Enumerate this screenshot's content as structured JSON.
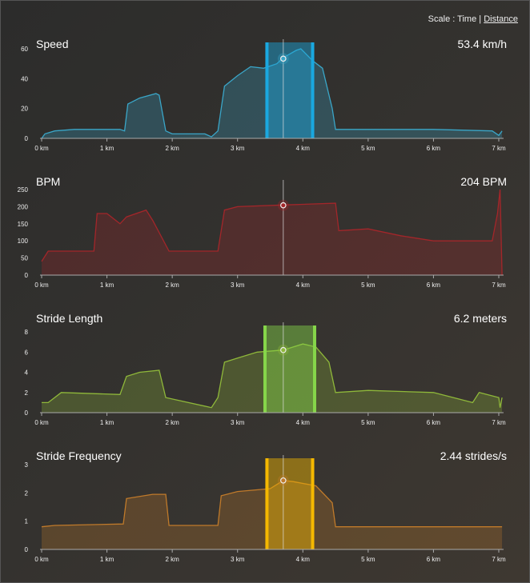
{
  "scale": {
    "label": "Scale :",
    "time": "Time",
    "sep": "|",
    "distance": "Distance"
  },
  "chart_data": [
    {
      "type": "area",
      "title": "Speed",
      "current_value": "53.4 km/h",
      "color": "#3aa6c8",
      "band_color": "#1aa8e0",
      "xlabel": "",
      "ylabel": "",
      "xlim": [
        0,
        7.05
      ],
      "ylim": [
        0,
        60
      ],
      "yticks": [
        "0",
        "20",
        "40",
        "60"
      ],
      "ytick_values": [
        0,
        20,
        40,
        60
      ],
      "xticks": [
        "0 km",
        "1 km",
        "2 km",
        "3 km",
        "4 km",
        "5 km",
        "6 km",
        "7 km"
      ],
      "selection": [
        3.45,
        4.15
      ],
      "cursor": 3.7,
      "cursor_value": 53.4,
      "points": [
        [
          0,
          0
        ],
        [
          0.05,
          3
        ],
        [
          0.2,
          5
        ],
        [
          0.5,
          6
        ],
        [
          1.2,
          6
        ],
        [
          1.27,
          5
        ],
        [
          1.32,
          23
        ],
        [
          1.5,
          27
        ],
        [
          1.75,
          30
        ],
        [
          1.8,
          29
        ],
        [
          1.9,
          5
        ],
        [
          2.0,
          3
        ],
        [
          2.5,
          3
        ],
        [
          2.6,
          1
        ],
        [
          2.7,
          5
        ],
        [
          2.8,
          35
        ],
        [
          3.0,
          42
        ],
        [
          3.2,
          48
        ],
        [
          3.4,
          47
        ],
        [
          3.6,
          50
        ],
        [
          3.7,
          54
        ],
        [
          3.9,
          59
        ],
        [
          3.97,
          60
        ],
        [
          4.15,
          52
        ],
        [
          4.3,
          47
        ],
        [
          4.45,
          20
        ],
        [
          4.5,
          6
        ],
        [
          5,
          6
        ],
        [
          6,
          6
        ],
        [
          6.9,
          5
        ],
        [
          7.0,
          2
        ],
        [
          7.05,
          5
        ]
      ]
    },
    {
      "type": "area",
      "title": "BPM",
      "current_value": "204 BPM",
      "color": "#a3262a",
      "band_color": null,
      "xlim": [
        0,
        7.05
      ],
      "ylim": [
        0,
        250
      ],
      "yticks": [
        "0",
        "50",
        "100",
        "150",
        "200",
        "250"
      ],
      "ytick_values": [
        0,
        50,
        100,
        150,
        200,
        250
      ],
      "xticks": [
        "0 km",
        "1 km",
        "2 km",
        "3 km",
        "4 km",
        "5 km",
        "6 km",
        "7 km"
      ],
      "selection": null,
      "cursor": 3.7,
      "cursor_value": 204,
      "points": [
        [
          0,
          40
        ],
        [
          0.1,
          70
        ],
        [
          0.8,
          70
        ],
        [
          0.85,
          180
        ],
        [
          1.0,
          180
        ],
        [
          1.2,
          150
        ],
        [
          1.3,
          170
        ],
        [
          1.6,
          190
        ],
        [
          1.7,
          160
        ],
        [
          1.95,
          70
        ],
        [
          2.7,
          70
        ],
        [
          2.8,
          190
        ],
        [
          3.0,
          200
        ],
        [
          3.7,
          205
        ],
        [
          4.5,
          210
        ],
        [
          4.55,
          130
        ],
        [
          5,
          135
        ],
        [
          5.5,
          115
        ],
        [
          6,
          100
        ],
        [
          6.9,
          100
        ],
        [
          6.98,
          180
        ],
        [
          7.02,
          250
        ],
        [
          7.05,
          0
        ]
      ]
    },
    {
      "type": "area",
      "title": "Stride Length",
      "current_value": "6.2 meters",
      "color": "#8fb83a",
      "band_color": "#86d64a",
      "xlim": [
        0,
        7.05
      ],
      "ylim": [
        0,
        8
      ],
      "yticks": [
        "0",
        "2",
        "4",
        "6",
        "8"
      ],
      "ytick_values": [
        0,
        2,
        4,
        6,
        8
      ],
      "xticks": [
        "0 km",
        "1 km",
        "2 km",
        "3 km",
        "4 km",
        "5 km",
        "6 km",
        "7 km"
      ],
      "selection": [
        3.42,
        4.18
      ],
      "cursor": 3.7,
      "cursor_value": 6.2,
      "points": [
        [
          0,
          1
        ],
        [
          0.1,
          1
        ],
        [
          0.3,
          2
        ],
        [
          1.2,
          1.8
        ],
        [
          1.3,
          3.6
        ],
        [
          1.5,
          4
        ],
        [
          1.8,
          4.2
        ],
        [
          1.9,
          1.5
        ],
        [
          2.6,
          0.5
        ],
        [
          2.7,
          1.5
        ],
        [
          2.8,
          5
        ],
        [
          3.0,
          5.4
        ],
        [
          3.3,
          6
        ],
        [
          3.7,
          6.2
        ],
        [
          4.0,
          6.8
        ],
        [
          4.2,
          6.5
        ],
        [
          4.4,
          5
        ],
        [
          4.5,
          2
        ],
        [
          5,
          2.2
        ],
        [
          6,
          2
        ],
        [
          6.6,
          1
        ],
        [
          6.7,
          2
        ],
        [
          7,
          1.5
        ],
        [
          7.02,
          0.5
        ],
        [
          7.05,
          1.5
        ]
      ]
    },
    {
      "type": "area",
      "title": "Stride Frequency",
      "current_value": "2.44 strides/s",
      "color": "#c07a2a",
      "band_color": "#f5b800",
      "xlim": [
        0,
        7.05
      ],
      "ylim": [
        0,
        3
      ],
      "yticks": [
        "0",
        "1",
        "2",
        "3"
      ],
      "ytick_values": [
        0,
        1,
        2,
        3
      ],
      "xticks": [
        "0 km",
        "1 km",
        "2 km",
        "3 km",
        "4 km",
        "5 km",
        "6 km",
        "7 km"
      ],
      "selection": [
        3.45,
        4.15
      ],
      "cursor": 3.7,
      "cursor_value": 2.44,
      "points": [
        [
          0,
          0.8
        ],
        [
          0.2,
          0.85
        ],
        [
          1.25,
          0.9
        ],
        [
          1.3,
          1.8
        ],
        [
          1.7,
          1.95
        ],
        [
          1.9,
          1.95
        ],
        [
          1.95,
          0.85
        ],
        [
          2.7,
          0.85
        ],
        [
          2.75,
          1.9
        ],
        [
          3.0,
          2.05
        ],
        [
          3.5,
          2.15
        ],
        [
          3.7,
          2.44
        ],
        [
          3.85,
          2.4
        ],
        [
          4.2,
          2.25
        ],
        [
          4.45,
          1.65
        ],
        [
          4.5,
          0.8
        ],
        [
          7.05,
          0.8
        ]
      ]
    }
  ]
}
